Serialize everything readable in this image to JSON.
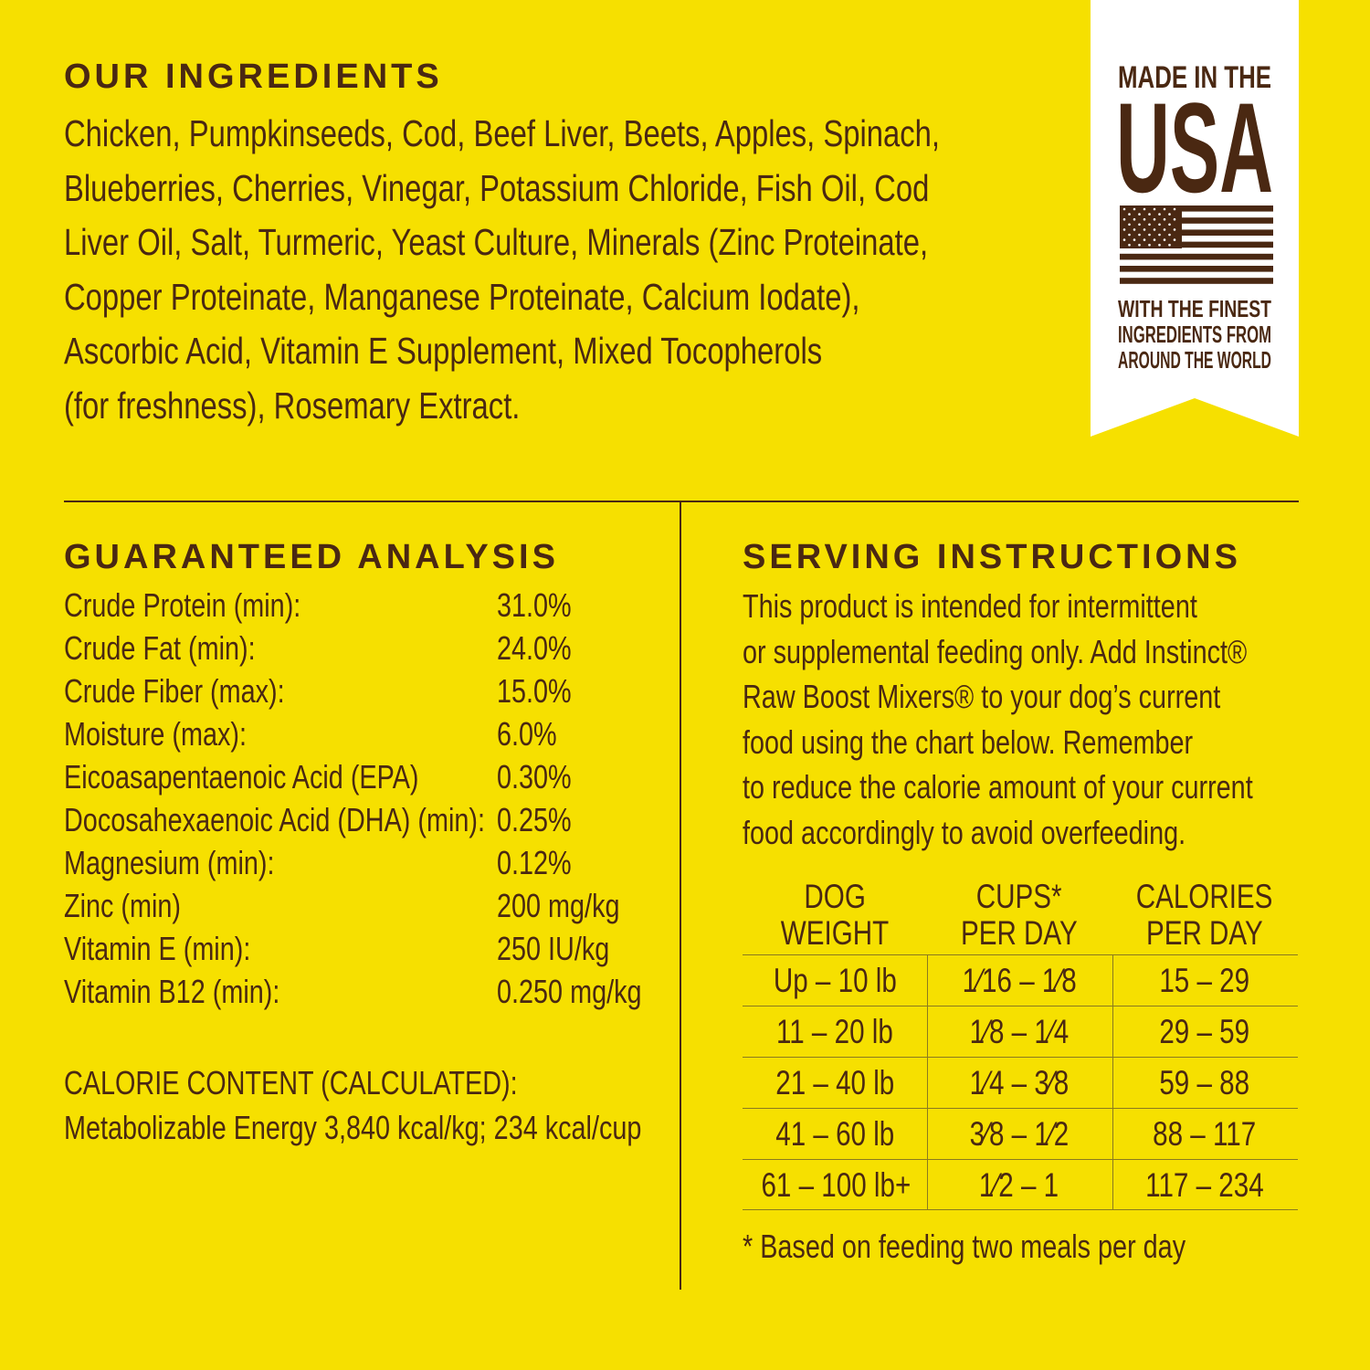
{
  "colors": {
    "background": "#f6e000",
    "text": "#4a2812",
    "badge": "#ffffff"
  },
  "ingredients": {
    "heading": "OUR INGREDIENTS",
    "lines": [
      "Chicken, Pumpkinseeds, Cod, Beef Liver, Beets, Apples, Spinach,",
      "Blueberries, Cherries, Vinegar, Potassium Chloride, Fish Oil, Cod",
      "Liver Oil, Salt, Turmeric, Yeast Culture, Minerals (Zinc Proteinate,",
      "Copper Proteinate, Manganese Proteinate, Calcium Iodate),",
      "Ascorbic Acid, Vitamin E Supplement, Mixed Tocopherols",
      "(for freshness), Rosemary Extract."
    ]
  },
  "badge": {
    "line1": "MADE IN THE",
    "line2": "USA",
    "line3": "WITH THE FINEST",
    "line4": "INGREDIENTS FROM",
    "line5": "AROUND THE WORLD",
    "icon": "us-flag-icon"
  },
  "analysis": {
    "heading": "GUARANTEED ANALYSIS",
    "rows": [
      {
        "label": "Crude Protein (min):",
        "value": "31.0%"
      },
      {
        "label": "Crude Fat (min):",
        "value": "24.0%"
      },
      {
        "label": "Crude Fiber (max):",
        "value": "15.0%"
      },
      {
        "label": "Moisture (max):",
        "value": "6.0%"
      },
      {
        "label": "Eicoasapentaenoic Acid (EPA)",
        "value": "0.30%"
      },
      {
        "label": "Docosahexaenoic Acid (DHA) (min):",
        "value": "0.25%"
      },
      {
        "label": "Magnesium (min):",
        "value": "0.12%"
      },
      {
        "label": "Zinc (min)",
        "value": "200 mg/kg"
      },
      {
        "label": "Vitamin E (min):",
        "value": "250 IU/kg"
      },
      {
        "label": "Vitamin B12 (min):",
        "value": "0.250 mg/kg"
      }
    ],
    "calorie_heading": "CALORIE CONTENT (CALCULATED):",
    "calorie_text": "Metabolizable Energy 3,840 kcal/kg; 234 kcal/cup"
  },
  "serving": {
    "heading": "SERVING INSTRUCTIONS",
    "lines": [
      "This product is intended for intermittent",
      "or supplemental feeding only. Add Instinct®",
      "Raw Boost Mixers® to your dog’s current",
      "food using the chart below. Remember",
      "to reduce the calorie amount of your current",
      "food accordingly to avoid overfeeding."
    ],
    "table": {
      "headers": [
        [
          "DOG",
          "WEIGHT"
        ],
        [
          "CUPS*",
          "PER DAY"
        ],
        [
          "CALORIES",
          "PER DAY"
        ]
      ],
      "rows": [
        [
          "Up – 10 lb",
          "1⁄16 – 1⁄8",
          "15 – 29"
        ],
        [
          "11 – 20 lb",
          "1⁄8 – 1⁄4",
          "29 – 59"
        ],
        [
          "21 – 40 lb",
          "1⁄4 – 3⁄8",
          "59 – 88"
        ],
        [
          "41 – 60 lb",
          "3⁄8 – 1⁄2",
          "88 – 117"
        ],
        [
          "61 – 100 lb+",
          "1⁄2 – 1",
          "117 – 234"
        ]
      ]
    },
    "footnote": "* Based on feeding two meals per day"
  }
}
